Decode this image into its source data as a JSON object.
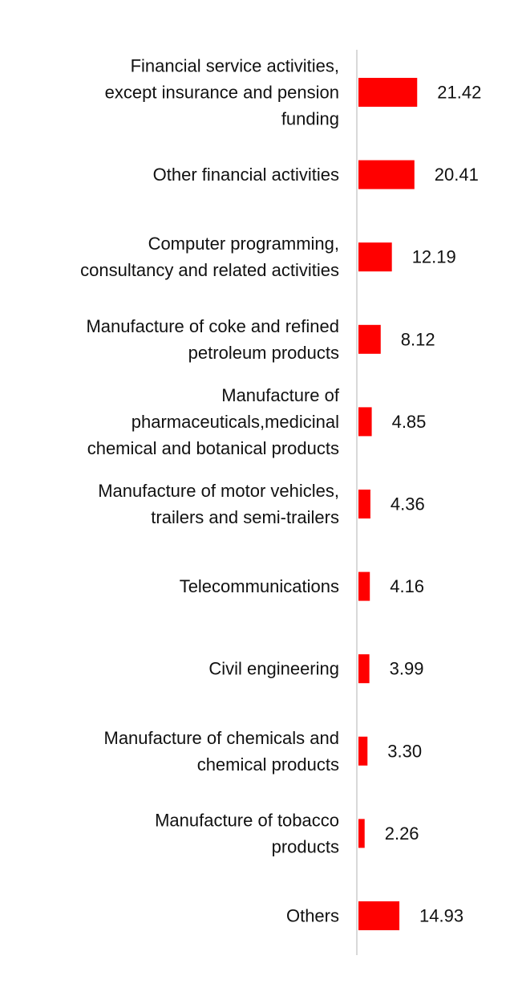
{
  "chart_data": {
    "type": "bar",
    "orientation": "horizontal",
    "categories": [
      "Financial service activities, except insurance and pension funding",
      "Other financial activities",
      "Computer programming, consultancy and related activities",
      "Manufacture of coke and refined petroleum products",
      "Manufacture of pharmaceuticals,medicinal chemical and botanical products",
      "Manufacture of motor vehicles, trailers and semi-trailers",
      "Telecommunications",
      "Civil engineering",
      "Manufacture of chemicals and chemical products",
      "Manufacture of tobacco products",
      "Others"
    ],
    "category_label_lines": [
      [
        "Financial service activities,",
        "except insurance and pension",
        "funding"
      ],
      [
        "Other financial activities"
      ],
      [
        "Computer programming,",
        "consultancy and related activities"
      ],
      [
        "Manufacture of coke and refined",
        "petroleum products"
      ],
      [
        "Manufacture of",
        "pharmaceuticals,medicinal",
        "chemical and botanical products"
      ],
      [
        "Manufacture of motor vehicles,",
        "trailers and semi-trailers"
      ],
      [
        "Telecommunications"
      ],
      [
        "Civil engineering"
      ],
      [
        "Manufacture of chemicals and",
        "chemical products"
      ],
      [
        "Manufacture of tobacco",
        "products"
      ],
      [
        "Others"
      ]
    ],
    "values": [
      21.42,
      20.41,
      12.19,
      8.12,
      4.85,
      4.36,
      4.16,
      3.99,
      3.3,
      2.26,
      14.93
    ],
    "value_labels": [
      "21.42",
      "20.41",
      "12.19",
      "8.12",
      "4.85",
      "4.36",
      "4.16",
      "3.99",
      "3.30",
      "2.26",
      "14.93"
    ],
    "bar_color": "#ff0000",
    "axis_color": "#d9d9d9",
    "xlim": [
      0,
      100
    ],
    "grid": false,
    "legend": "none",
    "title": "",
    "xlabel": "",
    "ylabel": ""
  }
}
